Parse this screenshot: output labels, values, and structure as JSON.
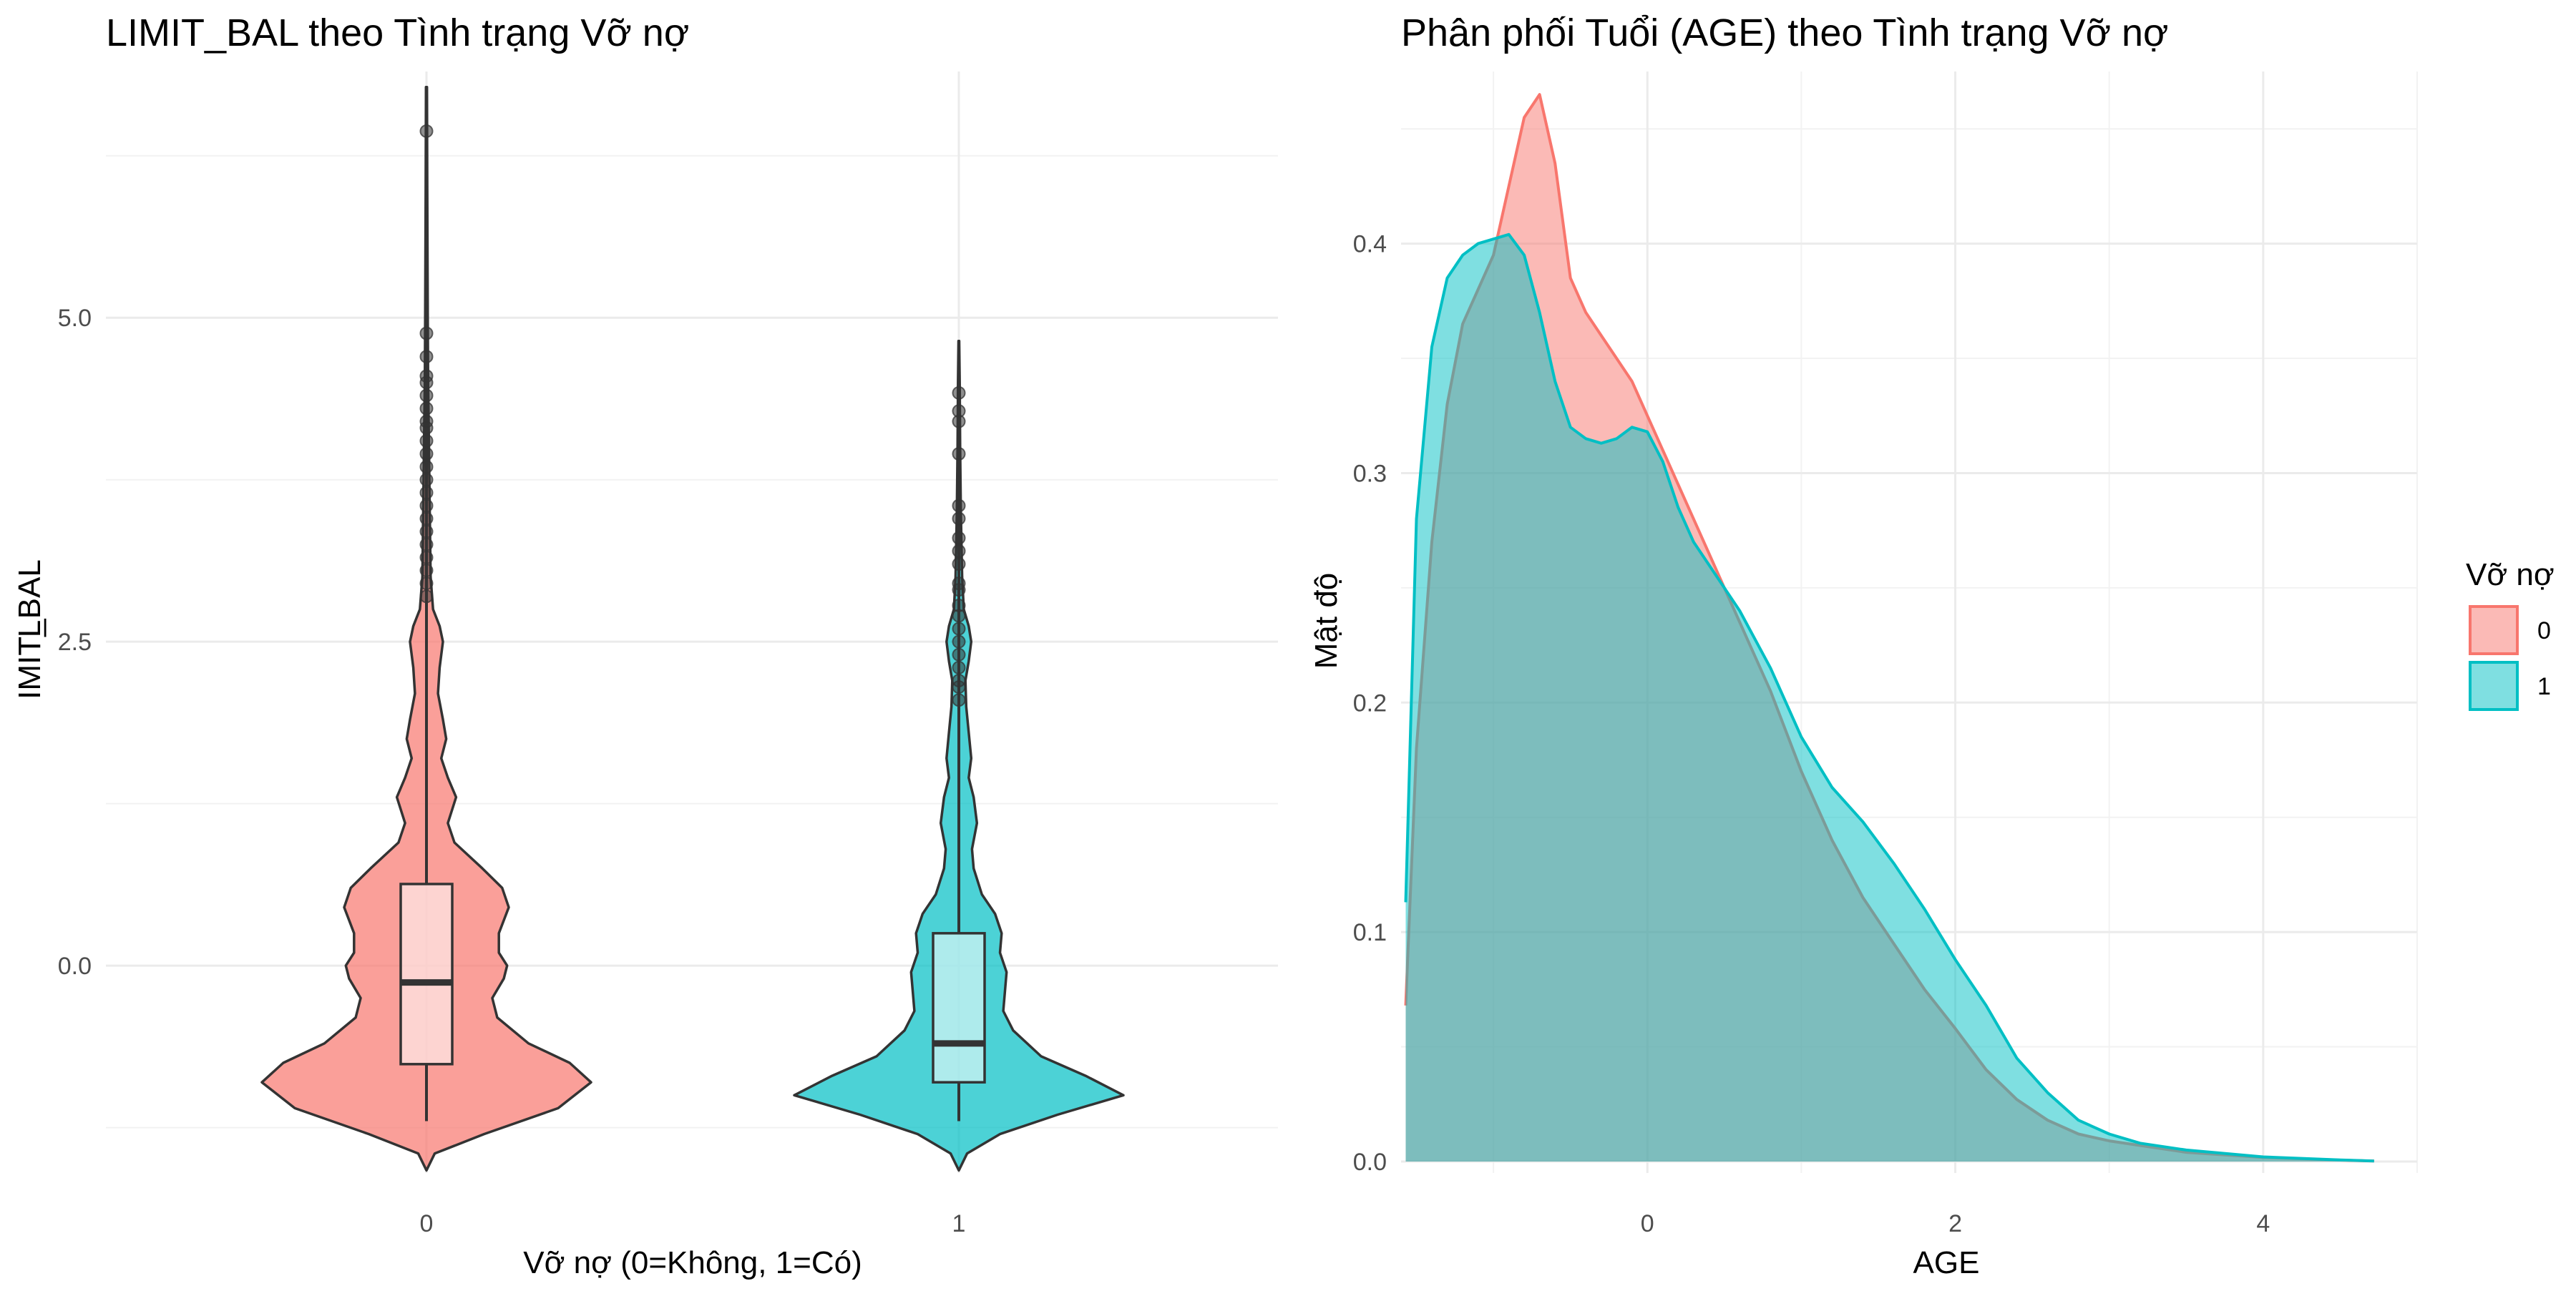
{
  "chart_data": [
    {
      "type": "violin",
      "title": "LIMIT_BAL theo Tình trạng Vỡ nợ",
      "xlabel": "Vỡ nợ (0=Không, 1=Có)",
      "ylabel": "LIMIT_BAL",
      "categories": [
        "0",
        "1"
      ],
      "yticks": [
        0.0,
        2.5,
        5.0
      ],
      "ytick_labels": [
        "0.0",
        "2.5",
        "5.0"
      ],
      "ylim": [
        -1.6,
        6.9
      ],
      "grid": true,
      "series": [
        {
          "category": "0",
          "color": "#F8766D",
          "density_profile": [
            [
              -1.58,
              0.0
            ],
            [
              -1.45,
              0.05
            ],
            [
              -1.3,
              0.35
            ],
            [
              -1.1,
              0.8
            ],
            [
              -0.9,
              1.0
            ],
            [
              -0.75,
              0.87
            ],
            [
              -0.6,
              0.62
            ],
            [
              -0.4,
              0.43
            ],
            [
              -0.25,
              0.4
            ],
            [
              -0.1,
              0.47
            ],
            [
              0.0,
              0.49
            ],
            [
              0.1,
              0.44
            ],
            [
              0.25,
              0.44
            ],
            [
              0.45,
              0.5
            ],
            [
              0.6,
              0.46
            ],
            [
              0.75,
              0.34
            ],
            [
              0.95,
              0.17
            ],
            [
              1.1,
              0.13
            ],
            [
              1.3,
              0.18
            ],
            [
              1.45,
              0.13
            ],
            [
              1.6,
              0.09
            ],
            [
              1.75,
              0.12
            ],
            [
              1.9,
              0.1
            ],
            [
              2.1,
              0.07
            ],
            [
              2.3,
              0.08
            ],
            [
              2.5,
              0.1
            ],
            [
              2.62,
              0.08
            ],
            [
              2.75,
              0.04
            ],
            [
              3.0,
              0.025
            ],
            [
              3.5,
              0.02
            ],
            [
              4.0,
              0.015
            ],
            [
              4.5,
              0.01
            ],
            [
              5.0,
              0.008
            ],
            [
              6.0,
              0.005
            ],
            [
              6.78,
              0.003
            ]
          ],
          "box": {
            "whisker_low": -1.2,
            "q1": -0.76,
            "median": -0.13,
            "q3": 0.63,
            "whisker_high": 2.8
          },
          "outliers": [
            2.85,
            2.95,
            3.05,
            3.15,
            3.25,
            3.35,
            3.45,
            3.55,
            3.65,
            3.75,
            3.85,
            3.95,
            4.05,
            4.15,
            4.2,
            4.3,
            4.4,
            4.5,
            4.55,
            4.7,
            4.88,
            6.44
          ]
        },
        {
          "category": "1",
          "color": "#00BFC4",
          "density_profile": [
            [
              -1.58,
              0.0
            ],
            [
              -1.45,
              0.05
            ],
            [
              -1.3,
              0.25
            ],
            [
              -1.15,
              0.6
            ],
            [
              -1.0,
              1.0
            ],
            [
              -0.85,
              0.77
            ],
            [
              -0.7,
              0.5
            ],
            [
              -0.5,
              0.33
            ],
            [
              -0.35,
              0.27
            ],
            [
              -0.2,
              0.28
            ],
            [
              -0.05,
              0.29
            ],
            [
              0.1,
              0.25
            ],
            [
              0.25,
              0.26
            ],
            [
              0.4,
              0.22
            ],
            [
              0.55,
              0.14
            ],
            [
              0.75,
              0.09
            ],
            [
              0.9,
              0.08
            ],
            [
              1.1,
              0.11
            ],
            [
              1.3,
              0.09
            ],
            [
              1.45,
              0.06
            ],
            [
              1.6,
              0.075
            ],
            [
              1.8,
              0.06
            ],
            [
              2.0,
              0.045
            ],
            [
              2.2,
              0.04
            ],
            [
              2.35,
              0.06
            ],
            [
              2.5,
              0.075
            ],
            [
              2.62,
              0.06
            ],
            [
              2.75,
              0.03
            ],
            [
              3.0,
              0.02
            ],
            [
              3.5,
              0.012
            ],
            [
              4.0,
              0.008
            ],
            [
              4.5,
              0.005
            ],
            [
              4.82,
              0.002
            ]
          ],
          "box": {
            "whisker_low": -1.2,
            "q1": -0.9,
            "median": -0.6,
            "q3": 0.25,
            "whisker_high": 2.0
          },
          "outliers": [
            2.05,
            2.15,
            2.2,
            2.3,
            2.4,
            2.5,
            2.6,
            2.7,
            2.78,
            2.9,
            2.95,
            3.1,
            3.2,
            3.3,
            3.45,
            3.55,
            3.95,
            4.2,
            4.28,
            4.42
          ]
        }
      ]
    },
    {
      "type": "area",
      "title": "Phân phối Tuổi (AGE) theo Tình trạng Vỡ nợ",
      "xlabel": "AGE",
      "ylabel": "Mật độ",
      "xlim": [
        -1.6,
        5.0
      ],
      "ylim": [
        -0.005,
        0.475
      ],
      "xticks": [
        0,
        2,
        4
      ],
      "xtick_labels": [
        "0",
        "2",
        "4"
      ],
      "yticks": [
        0.0,
        0.1,
        0.2,
        0.3,
        0.4
      ],
      "ytick_labels": [
        "0.0",
        "0.1",
        "0.2",
        "0.3",
        "0.4"
      ],
      "grid": true,
      "legend": {
        "title": "Vỡ nợ",
        "placement": "right"
      },
      "series": [
        {
          "name": "0",
          "color": "#F8766D",
          "x": [
            -1.57,
            -1.5,
            -1.4,
            -1.3,
            -1.2,
            -1.1,
            -1.0,
            -0.9,
            -0.8,
            -0.7,
            -0.6,
            -0.5,
            -0.4,
            -0.3,
            -0.2,
            -0.1,
            0.0,
            0.1,
            0.2,
            0.3,
            0.4,
            0.5,
            0.6,
            0.8,
            1.0,
            1.2,
            1.4,
            1.6,
            1.8,
            2.0,
            2.2,
            2.4,
            2.6,
            2.8,
            3.0,
            3.2,
            3.5,
            4.0,
            4.5,
            4.72
          ],
          "y": [
            0.068,
            0.18,
            0.27,
            0.33,
            0.365,
            0.38,
            0.395,
            0.425,
            0.455,
            0.465,
            0.435,
            0.385,
            0.37,
            0.36,
            0.35,
            0.34,
            0.325,
            0.31,
            0.295,
            0.28,
            0.265,
            0.25,
            0.235,
            0.205,
            0.17,
            0.14,
            0.115,
            0.095,
            0.075,
            0.058,
            0.04,
            0.027,
            0.018,
            0.012,
            0.009,
            0.007,
            0.004,
            0.0018,
            0.0006,
            0.0002
          ]
        },
        {
          "name": "1",
          "color": "#00BFC4",
          "x": [
            -1.57,
            -1.5,
            -1.4,
            -1.3,
            -1.2,
            -1.1,
            -1.0,
            -0.9,
            -0.8,
            -0.7,
            -0.6,
            -0.5,
            -0.4,
            -0.3,
            -0.2,
            -0.1,
            0.0,
            0.1,
            0.2,
            0.3,
            0.4,
            0.5,
            0.6,
            0.8,
            1.0,
            1.2,
            1.4,
            1.6,
            1.8,
            2.0,
            2.2,
            2.4,
            2.6,
            2.8,
            3.0,
            3.2,
            3.5,
            4.0,
            4.5,
            4.72
          ],
          "y": [
            0.113,
            0.28,
            0.355,
            0.385,
            0.395,
            0.4,
            0.402,
            0.404,
            0.395,
            0.37,
            0.34,
            0.32,
            0.315,
            0.313,
            0.315,
            0.32,
            0.318,
            0.305,
            0.285,
            0.27,
            0.26,
            0.25,
            0.24,
            0.215,
            0.185,
            0.163,
            0.148,
            0.13,
            0.11,
            0.088,
            0.068,
            0.045,
            0.03,
            0.018,
            0.012,
            0.008,
            0.005,
            0.002,
            0.0007,
            0.0002
          ]
        }
      ]
    }
  ]
}
